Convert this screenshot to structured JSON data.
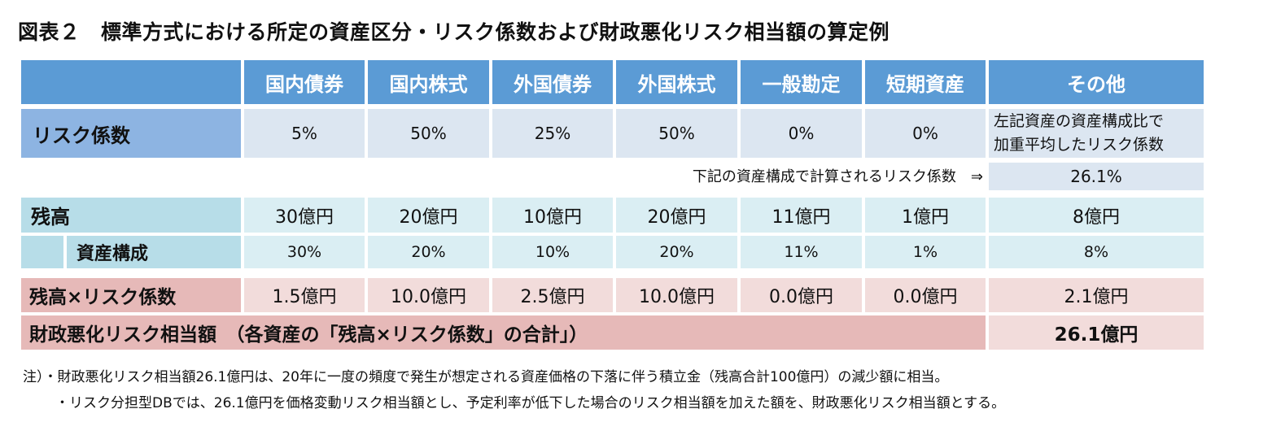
{
  "title": "図表２　標準方式における所定の資産区分・リスク係数および財政悪化リスク相当額の算定例",
  "columns": [
    "国内債券",
    "国内株式",
    "外国債券",
    "外国株式",
    "一般勘定",
    "短期資産",
    "その他"
  ],
  "risk_row": {
    "label": "リスク係数",
    "values": [
      "5%",
      "50%",
      "25%",
      "50%",
      "0%",
      "0%"
    ],
    "other_line1": "左記資産の資産構成比で",
    "other_line2": "加重平均したリスク係数"
  },
  "calc_row": {
    "note": "下記の資産構成で計算されるリスク係数　⇒",
    "value": "26.1%"
  },
  "balance_row": {
    "label": "残高",
    "values": [
      "30億円",
      "20億円",
      "10億円",
      "20億円",
      "11億円",
      "1億円",
      "8億円"
    ]
  },
  "composition_row": {
    "label": "資産構成",
    "values": [
      "30%",
      "20%",
      "10%",
      "20%",
      "11%",
      "1%",
      "8%"
    ]
  },
  "product_row": {
    "label": "残高×リスク係数",
    "values": [
      "1.5億円",
      "10.0億円",
      "2.5億円",
      "10.0億円",
      "0.0億円",
      "0.0億円",
      "2.1億円"
    ]
  },
  "total_row": {
    "label": "財政悪化リスク相当額　（各資産の「残高×リスク係数」の合計」）",
    "value": "26.1億円"
  },
  "notes": [
    "注）・財政悪化リスク相当額26.1億円は、20年に一度の頻度で発生が想定される資産価格の下落に伴う積立金（残高合計100億円）の減少額に相当。",
    "・リスク分担型DBでは、26.1億円を価格変動リスク相当額とし、予定利率が低下した場合のリスク相当額を加えた額を、財政悪化リスク相当額とする。"
  ]
}
